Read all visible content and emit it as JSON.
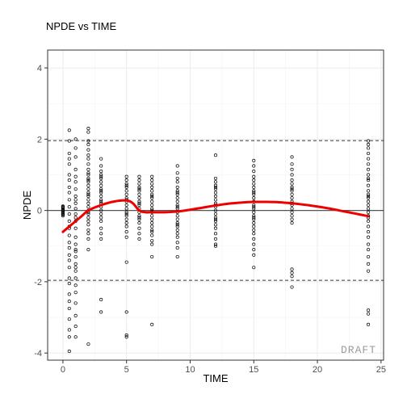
{
  "chart_data": {
    "type": "scatter",
    "title": "NPDE vs TIME",
    "xlabel": "TIME",
    "ylabel": "NPDE",
    "xlim": [
      -1.2,
      25.2
    ],
    "ylim": [
      -4.2,
      4.5
    ],
    "x_ticks": [
      0,
      5,
      10,
      15,
      20,
      25
    ],
    "y_ticks": [
      -4,
      -2,
      0,
      2,
      4
    ],
    "x_tick_labels": [
      "0",
      "5",
      "10",
      "15",
      "20",
      "25"
    ],
    "y_tick_labels": [
      "-4",
      "-2",
      "0",
      "2",
      "4"
    ],
    "grid": true,
    "reference_lines": {
      "zero": 0,
      "upper": 1.96,
      "lower": -1.96
    },
    "watermark": "DRAFT",
    "colors": {
      "points": "#000000",
      "smooth": "#ee0000",
      "grid": "#ebebeb",
      "panel_border": "#333333"
    },
    "points_by_time": [
      {
        "x": 0,
        "y": [
          0.12,
          0.08,
          0.05,
          0.02,
          0.0,
          -0.02,
          -0.05,
          -0.08,
          -0.12,
          -0.15,
          0.1,
          -0.1
        ]
      },
      {
        "x": 0.5,
        "y": [
          2.25,
          1.95,
          1.6,
          1.3,
          0.85,
          0.5,
          0.3,
          0.1,
          -0.1,
          -0.3,
          -0.5,
          -0.7,
          -0.9,
          -1.05,
          -1.4,
          -1.6,
          -1.9,
          -2.05,
          -2.35,
          -2.55,
          -2.75,
          -3.05,
          -3.35,
          -3.55,
          -3.95,
          1.45,
          1.0,
          0.65,
          -0.45,
          -1.25
        ]
      },
      {
        "x": 1,
        "y": [
          2.0,
          1.75,
          1.5,
          1.15,
          0.95,
          0.6,
          0.4,
          0.2,
          0.05,
          -0.1,
          -0.3,
          -0.5,
          -0.75,
          -0.95,
          -1.1,
          -1.3,
          -1.5,
          -1.7,
          -1.9,
          -2.1,
          -2.3,
          -2.6,
          -2.95,
          -3.25,
          -3.55,
          0.8,
          0.3,
          -0.2,
          -1.15,
          -1.6
        ]
      },
      {
        "x": 2,
        "y": [
          2.3,
          2.2,
          1.95,
          1.85,
          1.7,
          1.55,
          1.45,
          1.3,
          1.15,
          1.0,
          0.9,
          0.8,
          0.7,
          0.6,
          0.5,
          0.4,
          0.3,
          0.2,
          0.1,
          0.0,
          -0.1,
          -0.2,
          -0.3,
          -0.4,
          -0.55,
          -0.65,
          -0.8,
          -1.1,
          -3.75,
          1.05,
          0.85,
          0.45,
          -0.05
        ]
      },
      {
        "x": 3,
        "y": [
          1.45,
          1.25,
          1.1,
          1.0,
          0.9,
          0.8,
          0.7,
          0.6,
          0.5,
          0.4,
          0.3,
          0.2,
          0.1,
          0.0,
          -0.1,
          -0.2,
          -0.3,
          -0.5,
          -0.65,
          -0.8,
          -2.5,
          -2.85,
          0.95,
          0.55,
          0.25
        ]
      },
      {
        "x": 5,
        "y": [
          0.95,
          0.85,
          0.75,
          0.65,
          0.55,
          0.45,
          0.35,
          0.25,
          0.15,
          0.05,
          -0.05,
          -0.15,
          -0.25,
          -0.35,
          -0.45,
          -0.6,
          -0.75,
          -1.45,
          -2.85,
          -3.5,
          -3.55,
          0.7,
          0.3,
          -0.1
        ]
      },
      {
        "x": 6,
        "y": [
          0.95,
          0.85,
          0.75,
          0.65,
          0.55,
          0.45,
          0.35,
          0.25,
          0.15,
          0.05,
          -0.05,
          -0.15,
          -0.25,
          -0.35,
          -0.5,
          -0.65,
          -0.8,
          0.6,
          0.2,
          -0.2
        ]
      },
      {
        "x": 7,
        "y": [
          0.95,
          0.85,
          0.75,
          0.65,
          0.55,
          0.45,
          0.35,
          0.25,
          0.15,
          0.05,
          -0.05,
          -0.15,
          -0.25,
          -0.35,
          -0.45,
          -0.55,
          -0.7,
          -0.85,
          -0.95,
          -1.3,
          -3.2,
          0.4,
          0.0,
          -0.6
        ]
      },
      {
        "x": 9,
        "y": [
          1.25,
          1.05,
          0.9,
          0.8,
          0.65,
          0.55,
          0.45,
          0.35,
          0.25,
          0.15,
          0.05,
          -0.05,
          -0.15,
          -0.25,
          -0.35,
          -0.45,
          -0.55,
          -0.65,
          -0.75,
          -0.9,
          -1.05,
          -1.3,
          0.5,
          0.1,
          -0.4
        ]
      },
      {
        "x": 12,
        "y": [
          1.55,
          0.9,
          0.8,
          0.7,
          0.6,
          0.5,
          0.4,
          0.3,
          0.2,
          0.1,
          0.0,
          -0.1,
          -0.2,
          -0.3,
          -0.4,
          -0.5,
          -0.65,
          -0.8,
          -0.95,
          -1.0,
          0.65,
          0.15,
          -0.25
        ]
      },
      {
        "x": 15,
        "y": [
          1.4,
          1.25,
          1.1,
          0.95,
          0.85,
          0.75,
          0.65,
          0.55,
          0.45,
          0.35,
          0.25,
          0.15,
          0.05,
          -0.05,
          -0.15,
          -0.25,
          -0.35,
          -0.45,
          -0.55,
          -0.65,
          -0.8,
          -0.95,
          -1.1,
          -1.25,
          -1.6,
          0.5,
          0.1,
          -0.2
        ]
      },
      {
        "x": 18,
        "y": [
          1.5,
          1.3,
          1.15,
          1.0,
          0.85,
          0.75,
          0.65,
          0.55,
          0.45,
          0.35,
          0.25,
          0.15,
          0.05,
          -0.05,
          -0.15,
          -0.25,
          -0.35,
          -1.65,
          -1.75,
          -1.85,
          -2.15,
          0.6,
          0.2
        ]
      },
      {
        "x": 24,
        "y": [
          1.95,
          1.85,
          1.75,
          1.6,
          1.45,
          1.3,
          1.15,
          1.0,
          0.85,
          0.7,
          0.55,
          0.45,
          0.35,
          0.25,
          0.15,
          0.05,
          -0.05,
          -0.15,
          -0.3,
          -0.45,
          -0.6,
          -0.75,
          -0.95,
          -1.1,
          -1.3,
          -1.5,
          -1.7,
          -2.8,
          -2.9,
          -3.2,
          0.9,
          0.4,
          -0.2
        ]
      }
    ],
    "smooth_line": {
      "x": [
        0,
        0.5,
        1,
        1.5,
        2,
        3,
        4,
        5,
        5.5,
        6,
        6.5,
        7,
        8,
        9,
        10,
        11,
        12,
        13,
        14,
        15,
        16,
        17,
        18,
        19,
        20,
        21,
        22,
        23,
        24
      ],
      "y": [
        -0.6,
        -0.45,
        -0.3,
        -0.15,
        0.0,
        0.15,
        0.25,
        0.28,
        0.2,
        0.0,
        -0.05,
        -0.05,
        -0.05,
        -0.03,
        0.02,
        0.08,
        0.14,
        0.19,
        0.22,
        0.24,
        0.24,
        0.23,
        0.2,
        0.16,
        0.11,
        0.05,
        -0.02,
        -0.09,
        -0.16
      ]
    }
  }
}
